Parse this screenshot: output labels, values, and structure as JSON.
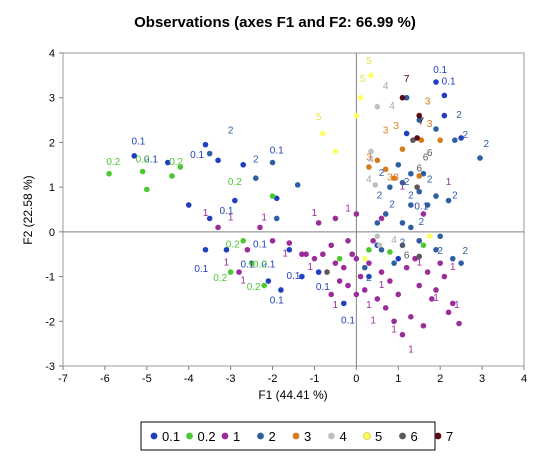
{
  "chart_data": {
    "type": "scatter",
    "title": "Observations (axes F1 and F2: 66.99 %)",
    "xlabel": "F1 (44.41 %)",
    "ylabel": "F2 (22.58 %)",
    "xlim": [
      -7,
      4
    ],
    "ylim": [
      -3,
      4
    ],
    "xticks": [
      "-7",
      "-6",
      "-5",
      "-4",
      "-3",
      "-2",
      "-1",
      "0",
      "1",
      "2",
      "3",
      "4"
    ],
    "yticks": [
      "-3",
      "-2",
      "-1",
      "0",
      "1",
      "2",
      "3",
      "4"
    ],
    "grid": false,
    "legend_position": "bottom",
    "series": [
      {
        "name": "0.1",
        "color": "#1f3fbf",
        "label_color": "#1f3fbf",
        "points": [
          [
            1.9,
            3.35
          ],
          [
            2.1,
            3.05
          ],
          [
            2.1,
            2.6
          ],
          [
            1.2,
            2.2
          ],
          [
            2.5,
            2.1
          ],
          [
            -5.3,
            1.7
          ],
          [
            -4.5,
            1.55
          ],
          [
            -3.6,
            1.95
          ],
          [
            -3.3,
            1.6
          ],
          [
            -2.7,
            1.5
          ],
          [
            -4.0,
            0.6
          ],
          [
            -3.5,
            0.3
          ],
          [
            -2.9,
            0.7
          ],
          [
            -1.9,
            0.75
          ],
          [
            -3.6,
            -0.4
          ],
          [
            -3.1,
            -0.4
          ],
          [
            -1.6,
            -0.4
          ],
          [
            -2.1,
            -1.1
          ],
          [
            -1.8,
            -1.3
          ],
          [
            -1.3,
            -1.0
          ],
          [
            -0.9,
            -0.9
          ],
          [
            -0.3,
            -1.6
          ],
          [
            0.5,
            -0.3
          ],
          [
            1.0,
            -0.6
          ],
          [
            0.3,
            -1.0
          ]
        ],
        "labels": [
          [
            2.0,
            3.55
          ],
          [
            2.2,
            3.3
          ],
          [
            1.55,
            0.5
          ],
          [
            -5.2,
            1.95
          ],
          [
            -4.9,
            1.55
          ],
          [
            -3.8,
            1.65
          ],
          [
            -1.9,
            1.75
          ],
          [
            -3.1,
            0.4
          ],
          [
            -2.3,
            -0.35
          ],
          [
            -2.1,
            -0.8
          ],
          [
            -3.7,
            -0.9
          ],
          [
            -2.6,
            -0.8
          ],
          [
            -1.5,
            -1.05
          ],
          [
            -1.9,
            -1.6
          ],
          [
            -0.8,
            -1.3
          ],
          [
            -0.2,
            -2.05
          ]
        ]
      },
      {
        "name": "0.2",
        "color": "#4cc832",
        "label_color": "#4cc832",
        "points": [
          [
            -5.9,
            1.3
          ],
          [
            -5.1,
            1.35
          ],
          [
            -5.0,
            0.95
          ],
          [
            -4.4,
            1.25
          ],
          [
            -4.2,
            1.45
          ],
          [
            -2.0,
            0.8
          ],
          [
            -2.7,
            -0.2
          ],
          [
            -3.0,
            -0.9
          ],
          [
            -2.5,
            -0.7
          ],
          [
            -2.2,
            -1.2
          ],
          [
            -0.4,
            -0.6
          ],
          [
            0.3,
            -0.4
          ],
          [
            0.8,
            -0.45
          ],
          [
            1.6,
            -0.3
          ]
        ],
        "labels": [
          [
            -5.8,
            1.5
          ],
          [
            -5.1,
            1.55
          ],
          [
            -4.3,
            1.5
          ],
          [
            -2.9,
            1.05
          ],
          [
            -2.95,
            -0.35
          ],
          [
            -3.25,
            -1.1
          ],
          [
            -2.45,
            -1.3
          ],
          [
            -2.3,
            -0.8
          ]
        ]
      },
      {
        "name": "1",
        "color": "#9b2d9b",
        "label_color": "#9b2d9b",
        "points": [
          [
            -3.3,
            0.1
          ],
          [
            -2.8,
            -0.9
          ],
          [
            -2.6,
            -0.4
          ],
          [
            -2.3,
            0.1
          ],
          [
            -2.0,
            -0.2
          ],
          [
            -1.6,
            -0.25
          ],
          [
            -1.2,
            -0.5
          ],
          [
            -1.0,
            -0.6
          ],
          [
            -0.8,
            -0.5
          ],
          [
            -0.6,
            -0.3
          ],
          [
            -0.5,
            -0.7
          ],
          [
            -0.4,
            -1.1
          ],
          [
            -0.3,
            -0.8
          ],
          [
            -0.2,
            -1.2
          ],
          [
            -0.1,
            -0.5
          ],
          [
            0.0,
            -0.6
          ],
          [
            0.1,
            -1.0
          ],
          [
            0.2,
            -1.3
          ],
          [
            0.3,
            -0.7
          ],
          [
            0.4,
            -0.2
          ],
          [
            0.5,
            -1.5
          ],
          [
            0.6,
            -0.9
          ],
          [
            0.7,
            -1.7
          ],
          [
            0.8,
            -1.1
          ],
          [
            0.9,
            -2.0
          ],
          [
            1.0,
            -1.4
          ],
          [
            1.1,
            -2.3
          ],
          [
            1.2,
            -0.8
          ],
          [
            1.3,
            -1.9
          ],
          [
            1.4,
            -0.6
          ],
          [
            1.5,
            -1.2
          ],
          [
            1.6,
            -2.1
          ],
          [
            1.7,
            -0.9
          ],
          [
            1.8,
            -1.5
          ],
          [
            1.9,
            -1.3
          ],
          [
            2.0,
            -0.7
          ],
          [
            2.1,
            -1.0
          ],
          [
            2.2,
            -1.8
          ],
          [
            2.3,
            -1.6
          ],
          [
            2.45,
            -2.05
          ],
          [
            -0.5,
            0.3
          ],
          [
            -0.9,
            0.2
          ],
          [
            0.0,
            0.4
          ],
          [
            0.6,
            0.3
          ],
          [
            1.6,
            0.4
          ],
          [
            -0.6,
            -1.4
          ],
          [
            0.0,
            -1.4
          ],
          [
            -1.3,
            -0.5
          ],
          [
            1.5,
            -0.2
          ],
          [
            -0.2,
            -0.2
          ]
        ],
        "labels": [
          [
            -3.6,
            0.35
          ],
          [
            -3.0,
            0.25
          ],
          [
            -2.2,
            0.25
          ],
          [
            -1.0,
            0.35
          ],
          [
            -0.2,
            0.45
          ],
          [
            -3.1,
            -0.75
          ],
          [
            -2.7,
            -1.15
          ],
          [
            -1.7,
            -0.55
          ],
          [
            -1.1,
            -0.85
          ],
          [
            -0.5,
            -1.7
          ],
          [
            0.3,
            -1.7
          ],
          [
            0.4,
            -2.05
          ],
          [
            0.9,
            -2.25
          ],
          [
            1.3,
            -2.7
          ],
          [
            1.9,
            -1.55
          ],
          [
            2.4,
            -1.7
          ],
          [
            1.5,
            -0.75
          ],
          [
            2.3,
            -0.85
          ],
          [
            0.6,
            -1.25
          ],
          [
            2.2,
            1.05
          ],
          [
            1.1,
            0.95
          ]
        ]
      },
      {
        "name": "2",
        "color": "#2e5fa3",
        "label_color": "#2e5fa3",
        "points": [
          [
            -3.5,
            1.75
          ],
          [
            -2.4,
            1.2
          ],
          [
            -1.9,
            0.3
          ],
          [
            -1.4,
            1.05
          ],
          [
            -2.0,
            1.55
          ],
          [
            1.2,
            3.0
          ],
          [
            1.5,
            2.5
          ],
          [
            1.9,
            2.3
          ],
          [
            2.35,
            2.05
          ],
          [
            2.95,
            1.65
          ],
          [
            1.0,
            1.5
          ],
          [
            1.3,
            1.3
          ],
          [
            1.6,
            1.3
          ],
          [
            1.1,
            1.1
          ],
          [
            0.8,
            1.0
          ],
          [
            1.5,
            0.9
          ],
          [
            1.9,
            0.8
          ],
          [
            2.2,
            0.7
          ],
          [
            1.7,
            0.6
          ],
          [
            0.7,
            0.4
          ],
          [
            1.1,
            0.2
          ],
          [
            1.3,
            0.1
          ],
          [
            0.5,
            0.2
          ],
          [
            0.6,
            -0.4
          ],
          [
            1.5,
            -0.2
          ],
          [
            1.9,
            -0.4
          ],
          [
            2.3,
            -0.6
          ],
          [
            0.9,
            -0.7
          ],
          [
            2.5,
            -0.7
          ],
          [
            2.0,
            -0.1
          ],
          [
            0.2,
            -0.8
          ],
          [
            1.3,
            0.6
          ]
        ],
        "labels": [
          [
            -3.0,
            2.2
          ],
          [
            -2.4,
            1.55
          ],
          [
            2.45,
            2.55
          ],
          [
            2.6,
            2.1
          ],
          [
            3.1,
            1.9
          ],
          [
            0.6,
            1.25
          ],
          [
            1.2,
            1.05
          ],
          [
            1.75,
            1.1
          ],
          [
            2.35,
            0.75
          ],
          [
            1.3,
            0.75
          ],
          [
            0.55,
            0.75
          ],
          [
            0.85,
            0.55
          ],
          [
            1.55,
            0.15
          ],
          [
            1.1,
            -0.3
          ],
          [
            2.6,
            -0.5
          ],
          [
            2.0,
            -0.5
          ],
          [
            0.3,
            -1.1
          ]
        ]
      },
      {
        "name": "3",
        "color": "#d97a1a",
        "label_color": "#d97a1a",
        "points": [
          [
            1.55,
            2.05
          ],
          [
            2.0,
            2.05
          ],
          [
            1.1,
            1.85
          ],
          [
            0.5,
            1.6
          ],
          [
            0.9,
            1.2
          ],
          [
            1.5,
            1.25
          ],
          [
            0.3,
            1.45
          ],
          [
            0.7,
            1.4
          ]
        ],
        "labels": [
          [
            1.7,
            2.85
          ],
          [
            0.95,
            2.3
          ],
          [
            0.7,
            2.2
          ],
          [
            1.75,
            2.35
          ],
          [
            0.8,
            1.15
          ],
          [
            0.95,
            1.15
          ],
          [
            0.3,
            1.6
          ]
        ]
      },
      {
        "name": "4",
        "color": "#bfbfbf",
        "label_color": "#a6a6a6",
        "points": [
          [
            0.5,
            2.8
          ],
          [
            0.35,
            1.8
          ],
          [
            0.45,
            1.05
          ],
          [
            0.5,
            -0.1
          ],
          [
            0.55,
            -0.3
          ]
        ],
        "labels": [
          [
            0.7,
            3.2
          ],
          [
            0.85,
            2.75
          ],
          [
            0.35,
            1.55
          ],
          [
            0.3,
            1.1
          ],
          [
            0.9,
            -0.25
          ]
        ]
      },
      {
        "name": "5",
        "color": "#ffff66",
        "label_color": "#e6e64d",
        "points": [
          [
            0.35,
            3.5
          ],
          [
            0.1,
            3.0
          ],
          [
            -0.8,
            2.2
          ],
          [
            0.0,
            2.6
          ],
          [
            -0.5,
            1.8
          ],
          [
            1.75,
            -0.1
          ],
          [
            0.2,
            -0.6
          ]
        ],
        "labels": [
          [
            0.3,
            3.75
          ],
          [
            0.15,
            3.35
          ],
          [
            -0.9,
            2.5
          ]
        ]
      },
      {
        "name": "6",
        "color": "#595959",
        "label_color": "#595959",
        "points": [
          [
            1.35,
            2.05
          ],
          [
            1.45,
            1.0
          ],
          [
            -0.7,
            -0.9
          ],
          [
            1.1,
            -0.3
          ],
          [
            1.5,
            -0.55
          ]
        ],
        "labels": [
          [
            1.75,
            1.7
          ],
          [
            1.5,
            1.35
          ],
          [
            1.65,
            1.6
          ],
          [
            1.2,
            -0.6
          ]
        ]
      },
      {
        "name": "7",
        "color": "#5a0a14",
        "label_color": "#3a0a0a",
        "points": [
          [
            1.1,
            3.0
          ],
          [
            1.45,
            2.1
          ],
          [
            1.5,
            2.6
          ]
        ],
        "labels": [
          [
            1.2,
            3.35
          ],
          [
            1.55,
            2.4
          ]
        ]
      }
    ]
  }
}
